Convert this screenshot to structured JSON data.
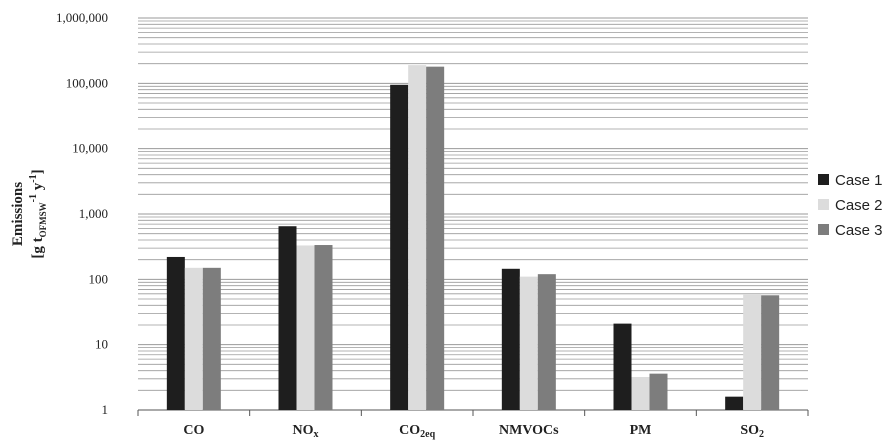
{
  "chart_data": {
    "type": "bar",
    "scale": "log",
    "ylim": [
      1,
      1000000
    ],
    "yticks": [
      "1",
      "10",
      "100",
      "1,000",
      "10,000",
      "100,000",
      "1,000,000"
    ],
    "ylabel_line1": "Emissions",
    "ylabel_line2_pre": "[g t",
    "ylabel_line2_sub": "OFMSW",
    "ylabel_line2_sup1": "-1",
    "ylabel_line2_mid": " y",
    "ylabel_line2_sup2": "-1",
    "ylabel_line2_post": "]",
    "categories": [
      {
        "base": "CO",
        "sub": ""
      },
      {
        "base": "NO",
        "sub": "x"
      },
      {
        "base": "CO",
        "sub": "2eq"
      },
      {
        "base": "NMVOCs",
        "sub": ""
      },
      {
        "base": "PM",
        "sub": ""
      },
      {
        "base": "SO",
        "sub": "2"
      }
    ],
    "series": [
      {
        "name": "Case 1",
        "color": "#1e1e1e",
        "values": [
          220,
          650,
          95000,
          145,
          21,
          1.6
        ]
      },
      {
        "name": "Case 2",
        "color": "#dcdcdc",
        "values": [
          150,
          330,
          190000,
          110,
          3.2,
          58
        ]
      },
      {
        "name": "Case 3",
        "color": "#7d7d7d",
        "values": [
          150,
          335,
          180000,
          120,
          3.6,
          57
        ]
      }
    ],
    "grid": true,
    "legend": "right"
  }
}
